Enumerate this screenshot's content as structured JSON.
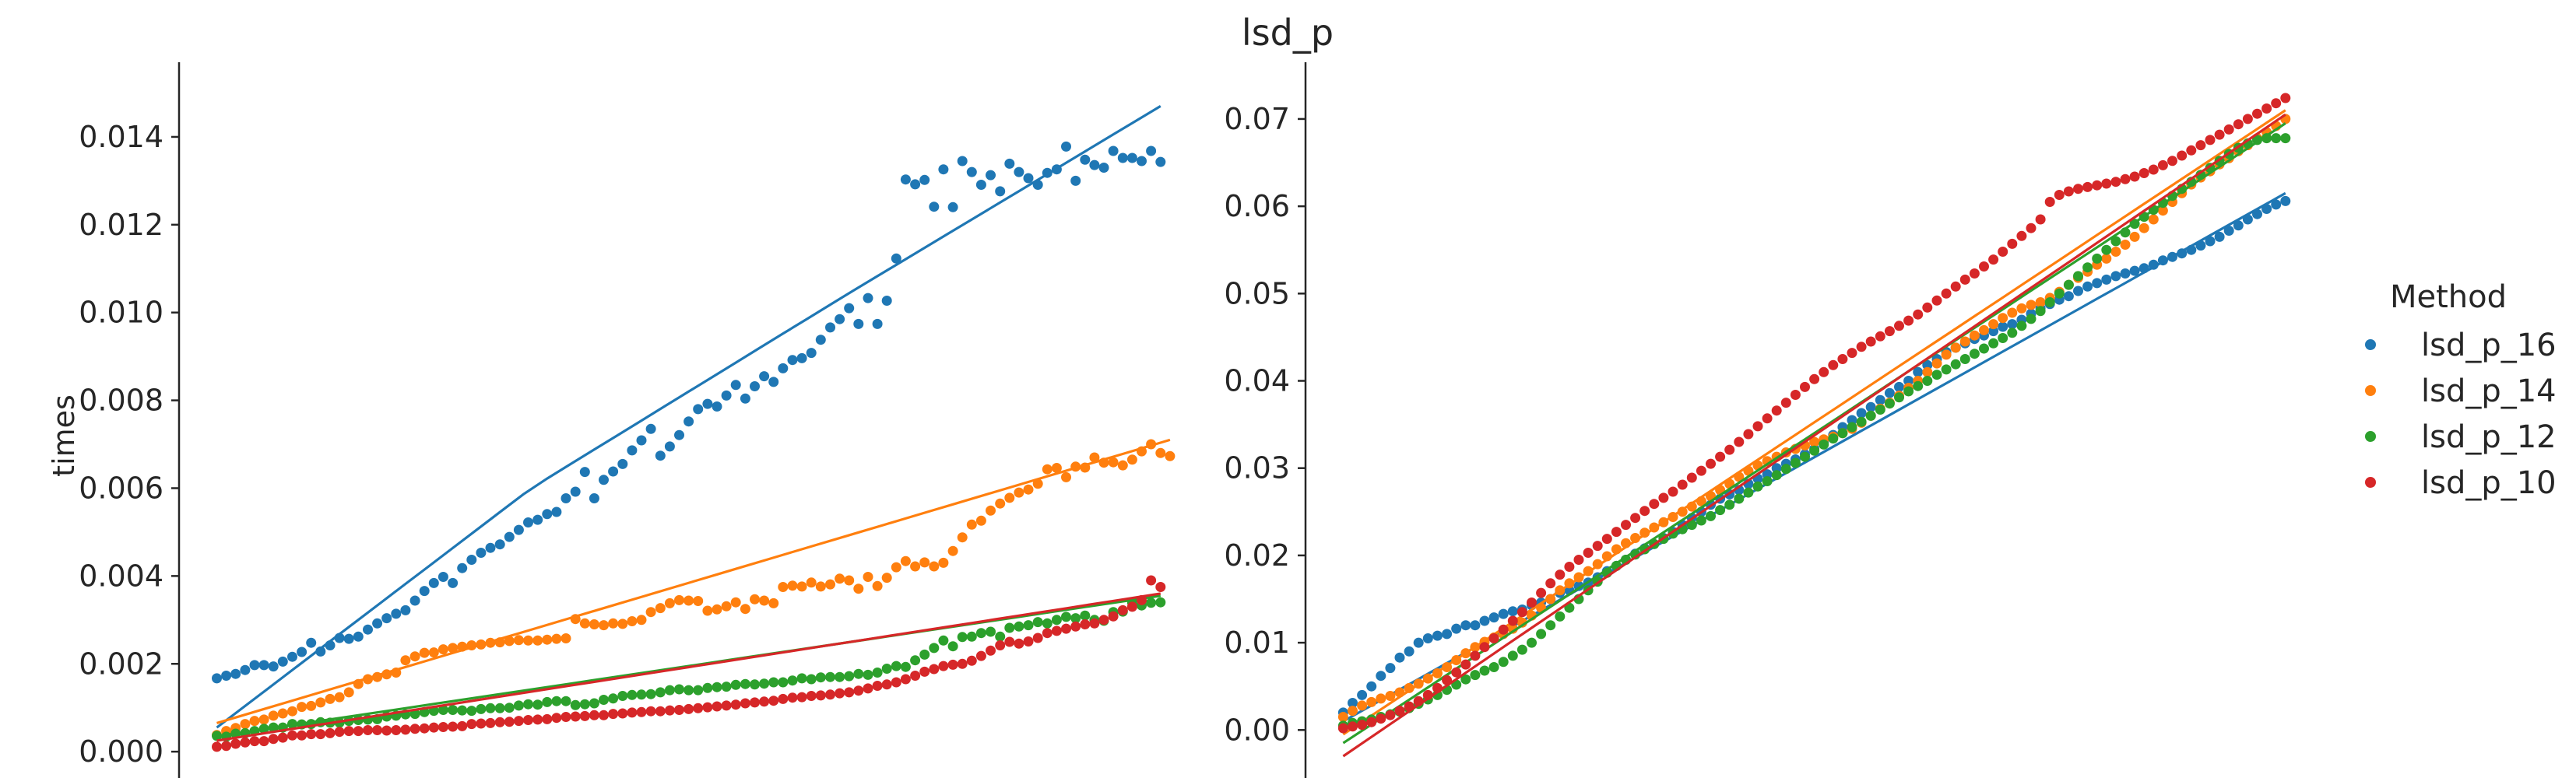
{
  "suptitle": "lsd_p",
  "legend": {
    "title": "Method",
    "placement": "center-right",
    "entries": [
      {
        "label": "lsd_p_16",
        "color": "#1f77b4"
      },
      {
        "label": "lsd_p_14",
        "color": "#ff7f0e"
      },
      {
        "label": "lsd_p_12",
        "color": "#2ca02c"
      },
      {
        "label": "lsd_p_10",
        "color": "#d62728"
      }
    ]
  },
  "chart_data": [
    {
      "type": "scatter",
      "title": "",
      "xlabel": "",
      "ylabel": "times",
      "ylim": [
        -0.0006,
        0.0157
      ],
      "xlim": [
        -4,
        102
      ],
      "yticks": [
        "0.000",
        "0.002",
        "0.004",
        "0.006",
        "0.008",
        "0.010",
        "0.012",
        "0.014"
      ],
      "ytick_values": [
        0,
        0.002,
        0.004,
        0.006,
        0.008,
        0.01,
        0.012,
        0.014
      ],
      "grid": false,
      "series": [
        {
          "name": "lsd_p_16",
          "color": "#1f77b4",
          "y": [
            0.00167,
            0.00173,
            0.00177,
            0.00186,
            0.00197,
            0.00197,
            0.00194,
            0.00205,
            0.00216,
            0.00227,
            0.00248,
            0.00228,
            0.00242,
            0.00259,
            0.00257,
            0.00262,
            0.00278,
            0.00292,
            0.00304,
            0.00314,
            0.00322,
            0.00344,
            0.00366,
            0.00384,
            0.00398,
            0.00384,
            0.00418,
            0.00437,
            0.00453,
            0.00464,
            0.00472,
            0.00489,
            0.00505,
            0.00522,
            0.00528,
            0.00541,
            0.00546,
            0.00577,
            0.00592,
            0.00637,
            0.00577,
            0.00619,
            0.00638,
            0.00655,
            0.00686,
            0.00709,
            0.00735,
            0.00674,
            0.00695,
            0.00721,
            0.00752,
            0.0078,
            0.00792,
            0.00786,
            0.00811,
            0.00835,
            0.00804,
            0.00832,
            0.00855,
            0.00842,
            0.00873,
            0.00892,
            0.00896,
            0.00908,
            0.00938,
            0.00966,
            0.00985,
            0.0101,
            0.00974,
            0.01033,
            0.00974,
            0.01027,
            0.01123,
            0.01303,
            0.01292,
            0.01302,
            0.01241,
            0.01326,
            0.0124,
            0.01345,
            0.0132,
            0.01291,
            0.01313,
            0.01276,
            0.01339,
            0.0132,
            0.01306,
            0.01291,
            0.01318,
            0.01326,
            0.01378,
            0.013,
            0.01348,
            0.01336,
            0.0133,
            0.01368,
            0.01352,
            0.01352,
            0.01345,
            0.01368,
            0.01343
          ],
          "fit": [
            0.00055,
            0.006,
            0.0104,
            0.0147
          ]
        },
        {
          "name": "lsd_p_14",
          "color": "#ff7f0e",
          "y": [
            0.00038,
            0.00047,
            0.00054,
            0.00063,
            0.0007,
            0.00073,
            0.00082,
            0.00087,
            0.00092,
            0.00102,
            0.00104,
            0.00112,
            0.0012,
            0.00124,
            0.00135,
            0.00154,
            0.00165,
            0.0017,
            0.00176,
            0.0018,
            0.00208,
            0.00217,
            0.00225,
            0.00226,
            0.00233,
            0.00236,
            0.00239,
            0.00242,
            0.00244,
            0.00248,
            0.00249,
            0.00252,
            0.00254,
            0.00253,
            0.00253,
            0.00255,
            0.00257,
            0.00258,
            0.00302,
            0.00292,
            0.0029,
            0.00288,
            0.00292,
            0.00291,
            0.00297,
            0.003,
            0.00318,
            0.00327,
            0.00338,
            0.00345,
            0.00344,
            0.00343,
            0.00321,
            0.00324,
            0.00331,
            0.0034,
            0.00325,
            0.00347,
            0.00344,
            0.00338,
            0.00375,
            0.00378,
            0.00376,
            0.00385,
            0.00376,
            0.00381,
            0.00394,
            0.0039,
            0.00371,
            0.00398,
            0.00377,
            0.00396,
            0.0042,
            0.00434,
            0.00422,
            0.00431,
            0.00422,
            0.0043,
            0.00457,
            0.00488,
            0.00517,
            0.00526,
            0.00549,
            0.00565,
            0.00578,
            0.0059,
            0.00597,
            0.0061,
            0.00643,
            0.00646,
            0.00625,
            0.00649,
            0.00647,
            0.0067,
            0.00658,
            0.00659,
            0.00652,
            0.00665,
            0.00684,
            0.007,
            0.0068,
            0.00673
          ],
          "fit": [
            0.00065,
            0.0071
          ]
        },
        {
          "name": "lsd_p_12",
          "color": "#2ca02c",
          "y": [
            0.00036,
            0.00034,
            0.00041,
            0.00042,
            0.00047,
            0.00052,
            0.00055,
            0.00055,
            0.00063,
            0.00062,
            0.00063,
            0.00067,
            0.00066,
            0.00066,
            0.0007,
            0.00072,
            0.00073,
            0.00074,
            0.0008,
            0.00082,
            0.00085,
            0.00086,
            0.0009,
            0.00093,
            0.00095,
            0.00095,
            0.00094,
            0.00093,
            0.00097,
            0.00099,
            0.00099,
            0.001,
            0.00105,
            0.00108,
            0.00107,
            0.00113,
            0.00115,
            0.00115,
            0.00106,
            0.00108,
            0.0011,
            0.00118,
            0.00121,
            0.00127,
            0.00129,
            0.0013,
            0.00131,
            0.00135,
            0.0014,
            0.00142,
            0.0014,
            0.0014,
            0.00145,
            0.00147,
            0.00148,
            0.00152,
            0.00154,
            0.00153,
            0.00155,
            0.00158,
            0.00158,
            0.00162,
            0.00167,
            0.00165,
            0.00169,
            0.0017,
            0.0017,
            0.00172,
            0.00177,
            0.00175,
            0.0018,
            0.00189,
            0.00195,
            0.00193,
            0.00208,
            0.00221,
            0.00236,
            0.00253,
            0.0024,
            0.00261,
            0.00262,
            0.0027,
            0.00273,
            0.00262,
            0.00282,
            0.00285,
            0.00288,
            0.00295,
            0.00292,
            0.003,
            0.00307,
            0.00304,
            0.0031,
            0.003,
            0.00298,
            0.00318,
            0.00319,
            0.00339,
            0.00333,
            0.00339,
            0.0034
          ],
          "fit": [
            0.00035,
            0.00355
          ]
        },
        {
          "name": "lsd_p_10",
          "color": "#d62728",
          "y": [
            0.00011,
            0.00013,
            0.00018,
            0.00021,
            0.00024,
            0.00024,
            0.00029,
            0.00032,
            0.00037,
            0.00037,
            0.0004,
            0.0004,
            0.00042,
            0.00045,
            0.00047,
            0.00047,
            0.00049,
            0.00049,
            0.00048,
            0.00049,
            0.0005,
            0.00052,
            0.00053,
            0.00055,
            0.00056,
            0.00057,
            0.00058,
            0.00063,
            0.00064,
            0.00065,
            0.00067,
            0.00068,
            0.0007,
            0.00072,
            0.00073,
            0.00074,
            0.00077,
            0.00079,
            0.0008,
            0.00081,
            0.00083,
            0.00083,
            0.00086,
            0.00087,
            0.00089,
            0.0009,
            0.00092,
            0.00092,
            0.00094,
            0.00095,
            0.00097,
            0.00099,
            0.00101,
            0.00103,
            0.00105,
            0.00107,
            0.0011,
            0.00112,
            0.00114,
            0.00116,
            0.0012,
            0.00123,
            0.00124,
            0.00127,
            0.00128,
            0.0013,
            0.00133,
            0.00135,
            0.00139,
            0.00144,
            0.0015,
            0.00153,
            0.00158,
            0.00165,
            0.00173,
            0.00182,
            0.00188,
            0.00195,
            0.00198,
            0.002,
            0.00207,
            0.00218,
            0.0023,
            0.00242,
            0.0025,
            0.00246,
            0.00251,
            0.00259,
            0.0027,
            0.00275,
            0.0028,
            0.00285,
            0.0029,
            0.00292,
            0.003,
            0.00308,
            0.00322,
            0.0033,
            0.00345,
            0.0039,
            0.00375
          ],
          "fit": [
            0.00025,
            0.0036
          ]
        }
      ]
    },
    {
      "type": "scatter",
      "title": "",
      "xlabel": "",
      "ylabel": "",
      "ylim": [
        -0.0055,
        0.0765
      ],
      "xlim": [
        -4,
        102
      ],
      "yticks": [
        "0.00",
        "0.01",
        "0.02",
        "0.03",
        "0.04",
        "0.05",
        "0.06",
        "0.07"
      ],
      "ytick_values": [
        0,
        0.01,
        0.02,
        0.03,
        0.04,
        0.05,
        0.06,
        0.07
      ],
      "grid": false,
      "series": [
        {
          "name": "lsd_p_16",
          "color": "#1f77b4",
          "y": [
            0.002,
            0.0031,
            0.004,
            0.005,
            0.0062,
            0.0071,
            0.0083,
            0.009,
            0.01,
            0.0105,
            0.0108,
            0.011,
            0.0116,
            0.012,
            0.012,
            0.0125,
            0.0129,
            0.0133,
            0.0136,
            0.0138,
            0.0143,
            0.0146,
            0.015,
            0.0157,
            0.016,
            0.0165,
            0.0169,
            0.0175,
            0.0182,
            0.0188,
            0.0195,
            0.0202,
            0.0208,
            0.0213,
            0.022,
            0.0227,
            0.0235,
            0.0243,
            0.025,
            0.0258,
            0.0265,
            0.027,
            0.0275,
            0.0282,
            0.0288,
            0.0293,
            0.03,
            0.0305,
            0.031,
            0.0316,
            0.0322,
            0.033,
            0.0338,
            0.0347,
            0.0355,
            0.0363,
            0.037,
            0.0378,
            0.0386,
            0.0393,
            0.04,
            0.041,
            0.0418,
            0.0425,
            0.0433,
            0.0438,
            0.0443,
            0.0448,
            0.0452,
            0.0457,
            0.0462,
            0.0465,
            0.047,
            0.0477,
            0.0483,
            0.0488,
            0.0493,
            0.0497,
            0.0503,
            0.0508,
            0.0512,
            0.0516,
            0.052,
            0.0523,
            0.0526,
            0.0529,
            0.0533,
            0.0538,
            0.0542,
            0.0546,
            0.055,
            0.0555,
            0.056,
            0.0565,
            0.0572,
            0.0578,
            0.0585,
            0.0591,
            0.0597,
            0.0602,
            0.0606
          ],
          "fit": [
            0.001,
            0.0615
          ]
        },
        {
          "name": "lsd_p_14",
          "color": "#ff7f0e",
          "y": [
            0.0015,
            0.0022,
            0.0028,
            0.0032,
            0.0036,
            0.0039,
            0.0043,
            0.0048,
            0.0053,
            0.0059,
            0.0065,
            0.0072,
            0.008,
            0.0088,
            0.0095,
            0.0101,
            0.0106,
            0.011,
            0.0116,
            0.0123,
            0.0131,
            0.014,
            0.015,
            0.016,
            0.0168,
            0.0175,
            0.0182,
            0.019,
            0.0199,
            0.0207,
            0.0214,
            0.022,
            0.0226,
            0.0232,
            0.0238,
            0.0244,
            0.025,
            0.0256,
            0.0262,
            0.0268,
            0.0275,
            0.0282,
            0.029,
            0.0297,
            0.0303,
            0.0308,
            0.0313,
            0.0318,
            0.0322,
            0.0326,
            0.033,
            0.0333,
            0.0336,
            0.034,
            0.0345,
            0.0352,
            0.036,
            0.0368,
            0.0375,
            0.0383,
            0.0392,
            0.04,
            0.041,
            0.042,
            0.043,
            0.0438,
            0.0445,
            0.0452,
            0.0458,
            0.0465,
            0.0472,
            0.0478,
            0.0483,
            0.0487,
            0.049,
            0.0495,
            0.0502,
            0.051,
            0.0518,
            0.0525,
            0.0533,
            0.054,
            0.0548,
            0.0556,
            0.0565,
            0.0575,
            0.0585,
            0.0595,
            0.0605,
            0.0615,
            0.0625,
            0.0633,
            0.064,
            0.0648,
            0.0655,
            0.0663,
            0.067,
            0.0678,
            0.0685,
            0.0692,
            0.07
          ],
          "fit": [
            -0.0005,
            0.071
          ]
        },
        {
          "name": "lsd_p_12",
          "color": "#2ca02c",
          "y": [
            0.0005,
            0.0008,
            0.001,
            0.0012,
            0.0015,
            0.0018,
            0.0021,
            0.0025,
            0.003,
            0.0035,
            0.004,
            0.0046,
            0.0052,
            0.0058,
            0.0063,
            0.0068,
            0.0072,
            0.0078,
            0.0085,
            0.0092,
            0.01,
            0.011,
            0.012,
            0.013,
            0.014,
            0.015,
            0.016,
            0.017,
            0.018,
            0.0188,
            0.0195,
            0.0201,
            0.0207,
            0.0213,
            0.0219,
            0.0225,
            0.023,
            0.0235,
            0.024,
            0.0245,
            0.0252,
            0.0258,
            0.0265,
            0.0272,
            0.0279,
            0.0285,
            0.0292,
            0.0299,
            0.0306,
            0.0313,
            0.032,
            0.0327,
            0.0334,
            0.034,
            0.0347,
            0.0353,
            0.036,
            0.0367,
            0.0374,
            0.0381,
            0.0388,
            0.0394,
            0.04,
            0.0407,
            0.0413,
            0.0419,
            0.0425,
            0.0431,
            0.0437,
            0.0443,
            0.0449,
            0.0455,
            0.0463,
            0.0471,
            0.048,
            0.049,
            0.05,
            0.051,
            0.052,
            0.053,
            0.054,
            0.055,
            0.056,
            0.057,
            0.058,
            0.0588,
            0.0596,
            0.0604,
            0.0612,
            0.062,
            0.0628,
            0.0636,
            0.0644,
            0.0652,
            0.066,
            0.0667,
            0.0672,
            0.0676,
            0.0678,
            0.0678,
            0.0678
          ],
          "fit": [
            -0.0015,
            0.0695
          ]
        },
        {
          "name": "lsd_p_10",
          "color": "#d62728",
          "y": [
            0.0002,
            0.0004,
            0.0006,
            0.0009,
            0.0013,
            0.0017,
            0.0022,
            0.0027,
            0.0033,
            0.004,
            0.0048,
            0.0057,
            0.0066,
            0.0075,
            0.0085,
            0.0095,
            0.0105,
            0.0115,
            0.0125,
            0.0135,
            0.0146,
            0.0157,
            0.0168,
            0.0178,
            0.0187,
            0.0195,
            0.0203,
            0.0211,
            0.0219,
            0.0227,
            0.0235,
            0.0243,
            0.0251,
            0.0259,
            0.0266,
            0.0273,
            0.0281,
            0.0289,
            0.0297,
            0.0305,
            0.0313,
            0.0321,
            0.033,
            0.0339,
            0.0348,
            0.0357,
            0.0366,
            0.0375,
            0.0384,
            0.0393,
            0.0402,
            0.041,
            0.0418,
            0.0425,
            0.0432,
            0.0439,
            0.0445,
            0.0451,
            0.0457,
            0.0463,
            0.0469,
            0.0476,
            0.0484,
            0.0492,
            0.05,
            0.0508,
            0.0516,
            0.0523,
            0.0531,
            0.0539,
            0.0548,
            0.0557,
            0.0566,
            0.0575,
            0.0585,
            0.0605,
            0.0613,
            0.0617,
            0.062,
            0.0622,
            0.0624,
            0.0626,
            0.0628,
            0.0631,
            0.0634,
            0.0638,
            0.0642,
            0.0647,
            0.0652,
            0.0658,
            0.0664,
            0.067,
            0.0676,
            0.0682,
            0.0688,
            0.0694,
            0.07,
            0.0706,
            0.0712,
            0.0718,
            0.0724
          ],
          "fit": [
            -0.003,
            0.0705
          ]
        }
      ]
    }
  ]
}
